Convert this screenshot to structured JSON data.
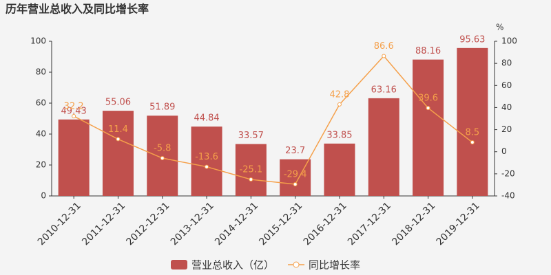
{
  "chart_data": {
    "type": "bar",
    "title": "历年营业总收入及同比增长率",
    "categories": [
      "2010-12-31",
      "2011-12-31",
      "2012-12-31",
      "2013-12-31",
      "2014-12-31",
      "2015-12-31",
      "2016-12-31",
      "2017-12-31",
      "2018-12-31",
      "2019-12-31"
    ],
    "series": [
      {
        "name": "营业总收入（亿）",
        "type": "bar",
        "color": "#c0504d",
        "values": [
          49.43,
          55.06,
          51.89,
          44.84,
          33.57,
          23.7,
          33.85,
          63.16,
          88.16,
          95.63
        ]
      },
      {
        "name": "同比增长率",
        "type": "line",
        "axis": "y2",
        "color": "#f5a04a",
        "values": [
          32.2,
          11.4,
          -5.8,
          -13.6,
          -25.1,
          -29.4,
          42.8,
          86.6,
          39.6,
          8.5
        ]
      }
    ],
    "ylim": [
      0,
      100
    ],
    "yticks": [
      0,
      20,
      40,
      60,
      80,
      100
    ],
    "y2lim": [
      -40,
      100
    ],
    "y2ticks": [
      -40,
      -20,
      0,
      20,
      40,
      60,
      80,
      100
    ],
    "y2_unit": "%"
  }
}
